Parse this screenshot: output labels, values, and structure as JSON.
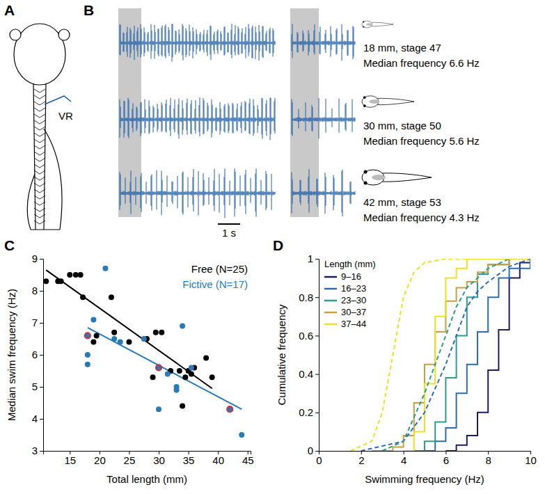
{
  "panels": [
    "A",
    "B",
    "C",
    "D"
  ],
  "diagram": {
    "electrode_label": "VR"
  },
  "recordings": {
    "scale_bar": "1 s",
    "rows": [
      {
        "size": "18 mm, stage 47",
        "frequency": "Median frequency 6.6 Hz"
      },
      {
        "size": "30 mm, stage 50",
        "frequency": "Median frequency 5.6 Hz"
      },
      {
        "size": "42 mm, stage 53",
        "frequency": "Median frequency 4.3 Hz"
      }
    ]
  },
  "chart_data": [
    {
      "type": "scatter",
      "x_label": "Total length (mm)",
      "y_label": "Median swim frequency (Hz)",
      "xlim": [
        10.5,
        45.5
      ],
      "xticks": [
        15,
        20,
        25,
        30,
        35,
        40,
        45
      ],
      "ylim": [
        3,
        9
      ],
      "yticks": [
        3,
        4,
        5,
        6,
        7,
        8,
        9
      ],
      "legend": "upper right",
      "series": [
        {
          "name": "Free (N=25)",
          "color": "#000000",
          "x": [
            11,
            13,
            13.5,
            15,
            16,
            16.8,
            17.2,
            19,
            19.5,
            22,
            22.5,
            25,
            28,
            29,
            29.5,
            30.5,
            32,
            33.5,
            34,
            34.5,
            35,
            35.5,
            36,
            38,
            39
          ],
          "values": [
            8.3,
            8.3,
            8.3,
            8.5,
            8.5,
            8.5,
            7.8,
            6.4,
            6.6,
            7.8,
            6.7,
            6.4,
            6.5,
            5.3,
            6.7,
            6.7,
            5.5,
            5.5,
            4.4,
            5.3,
            5.5,
            5.4,
            5.6,
            5.9,
            5.3
          ],
          "fit_x": [
            11,
            39
          ],
          "fit_values": [
            8.65,
            4.95
          ]
        },
        {
          "name": "Fictive (N=17)",
          "color": "#2a7ab8",
          "x": [
            18,
            18,
            18,
            19,
            21,
            22.5,
            23.5,
            27.5,
            30,
            30,
            31.5,
            33,
            33,
            34,
            35.5,
            42,
            44
          ],
          "values": [
            6.6,
            6.0,
            5.7,
            7.1,
            8.7,
            6.5,
            6.4,
            6.5,
            5.6,
            4.3,
            5.4,
            5.0,
            4.9,
            6.9,
            5.6,
            4.3,
            3.5
          ],
          "colors": [
            "#c8334a",
            "#2a7ab8",
            "#2a7ab8",
            "#2a7ab8",
            "#2a7ab8",
            "#2a7ab8",
            "#2a7ab8",
            "#2a7ab8",
            "#c8334a",
            "#2a7ab8",
            "#2a7ab8",
            "#2a7ab8",
            "#2a7ab8",
            "#2a7ab8",
            "#2a7ab8",
            "#c8334a",
            "#2a7ab8"
          ],
          "fit_x": [
            18,
            44
          ],
          "fit_values": [
            6.85,
            4.3
          ]
        }
      ]
    },
    {
      "type": "line",
      "x_label": "Swimming frequency (Hz)",
      "y_label": "Cumulative frequency",
      "legend_title": "Length (mm)",
      "legend": "upper left",
      "xlim": [
        0,
        10
      ],
      "xticks": [
        0,
        2,
        4,
        6,
        8,
        10
      ],
      "ylim": [
        0,
        1
      ],
      "yticks": [
        0,
        0.2,
        0.4,
        0.6,
        0.8,
        1
      ],
      "series": [
        {
          "name": "9–16",
          "color": "#1c1c5e",
          "type": "step",
          "line_style": "solid",
          "x": [
            6,
            6.5,
            7,
            7.5,
            8,
            8.5,
            9,
            9.5,
            10
          ],
          "values": [
            0,
            0.03,
            0.08,
            0.2,
            0.42,
            0.63,
            0.9,
            0.98,
            1
          ]
        },
        {
          "name": "16–23",
          "color": "#2a6db5",
          "type": "step",
          "line_style": "solid",
          "x": [
            5,
            5.5,
            6,
            6.5,
            7,
            7.5,
            8,
            8.5,
            9,
            10
          ],
          "values": [
            0,
            0.05,
            0.12,
            0.3,
            0.45,
            0.62,
            0.8,
            0.9,
            0.95,
            1
          ]
        },
        {
          "name": "23–30",
          "color": "#2a9d8f",
          "type": "step",
          "line_style": "solid",
          "x": [
            4.5,
            5,
            5.5,
            6,
            6.5,
            7,
            7.5,
            8,
            9
          ],
          "values": [
            0,
            0.05,
            0.15,
            0.38,
            0.6,
            0.8,
            0.92,
            0.97,
            1
          ]
        },
        {
          "name": "30–37",
          "color": "#c8a040",
          "type": "step",
          "line_style": "solid",
          "x": [
            2.5,
            3.5,
            4,
            4.5,
            5,
            5.5,
            6,
            6.5,
            7,
            7.5,
            8,
            9
          ],
          "values": [
            0,
            0.02,
            0.08,
            0.25,
            0.45,
            0.62,
            0.78,
            0.85,
            0.88,
            0.93,
            0.97,
            1
          ]
        },
        {
          "name": "37–44",
          "color": "#f0e020",
          "type": "step",
          "line_style": "solid",
          "x": [
            4,
            4.5,
            5,
            5.5,
            6,
            6.5,
            7,
            10
          ],
          "values": [
            0,
            0.1,
            0.35,
            0.7,
            0.9,
            0.95,
            1,
            1
          ]
        },
        {
          "color": "#2a6db5",
          "type": "line",
          "line_style": "dashed",
          "x": [
            2,
            4,
            5,
            6,
            6.5,
            7,
            7.5,
            8,
            9,
            10
          ],
          "values": [
            0,
            0.05,
            0.2,
            0.45,
            0.6,
            0.75,
            0.83,
            0.88,
            0.96,
            1
          ]
        },
        {
          "color": "#2a9d8f",
          "type": "line",
          "line_style": "dashed",
          "x": [
            3,
            4,
            5,
            5.5,
            6,
            6.5,
            7,
            8,
            9,
            10
          ],
          "values": [
            0,
            0.05,
            0.3,
            0.45,
            0.6,
            0.75,
            0.85,
            0.95,
            1,
            1
          ]
        },
        {
          "color": "#f0e020",
          "type": "line",
          "line_style": "dashed",
          "x": [
            1.5,
            2.5,
            3,
            3.5,
            4,
            4.5,
            5,
            6,
            10
          ],
          "values": [
            0,
            0.05,
            0.2,
            0.5,
            0.8,
            0.93,
            0.98,
            1,
            1
          ]
        }
      ]
    }
  ]
}
